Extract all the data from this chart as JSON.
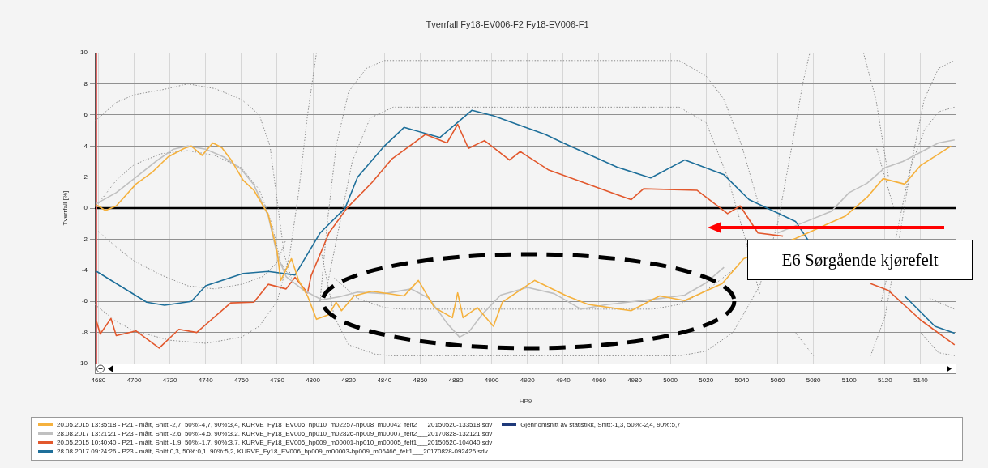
{
  "chart_data": {
    "type": "line",
    "title": "Tverrfall Fy18-EV006-F2 Fy18-EV006-F1",
    "xlabel": "HP9",
    "ylabel": "Tverrfall [%]",
    "xlim": [
      4678,
      5160
    ],
    "xticks": [
      4680,
      4700,
      4720,
      4740,
      4760,
      4780,
      4800,
      4820,
      4840,
      4860,
      4880,
      4900,
      4920,
      4940,
      4960,
      4980,
      5000,
      5020,
      5040,
      5060,
      5080,
      5100,
      5120,
      5140
    ],
    "ylim": [
      -10,
      10
    ],
    "yticks": [
      -10,
      -8,
      -6,
      -4,
      -2,
      0,
      2,
      4,
      6,
      8,
      10
    ],
    "grid": true,
    "legend": "bottom",
    "marker": "none",
    "line_style": "solid",
    "ref_lines": [
      {
        "axis": "y",
        "value": 0,
        "color": "#000000"
      },
      {
        "axis": "x",
        "value": 4679,
        "color": "#e06060"
      }
    ],
    "annotations": [
      "E6 Sørgående kjørefelt"
    ],
    "series": [
      {
        "name": "20.05.2015 13:35:18 - P21 - målt, Snitt:-2,7, 50%:-4,7, 90%:3,4, KURVE_Fy18_EV006_hp010_m02257-hp008_m00042_felt2___20150520-133518.sdv",
        "color": "#f5b13d",
        "x": [
          4679,
          4684,
          4690,
          4701,
          4710,
          4719,
          4728,
          4732,
          4738,
          4744,
          4749,
          4754,
          4761,
          4767,
          4775,
          4780,
          4782,
          4788,
          4792,
          4797,
          4802,
          4809,
          4813,
          4816,
          4823,
          4833,
          4851,
          4859,
          4868,
          4878,
          4881,
          4884,
          4892,
          4901,
          4906,
          4924,
          4942,
          4954,
          4978,
          4994,
          5008,
          5029,
          5041,
          5070,
          5098,
          5110,
          5119,
          5131,
          5140,
          5157
        ],
        "values": [
          0.2,
          -0.15,
          0.15,
          1.55,
          2.3,
          3.3,
          3.85,
          4.0,
          3.4,
          4.2,
          3.9,
          3.15,
          1.8,
          1.15,
          -0.4,
          -2.8,
          -4.65,
          -3.25,
          -4.65,
          -5.65,
          -7.15,
          -6.85,
          -6.05,
          -6.6,
          -5.65,
          -5.35,
          -5.65,
          -4.65,
          -6.4,
          -7.05,
          -5.45,
          -7.05,
          -6.4,
          -7.6,
          -6.05,
          -4.65,
          -5.65,
          -6.2,
          -6.6,
          -5.65,
          -5.95,
          -4.85,
          -3.25,
          -1.95,
          -0.5,
          0.7,
          1.9,
          1.55,
          2.75,
          4.0
        ]
      },
      {
        "name": "28.08.2017 13:21:21 - P23 - målt, Snitt:-2,6, 50%:-4,5, 90%:3,2, KURVE_Fy18_EV006_hp010_m02826-hp009_m00007_felt2___20170828-132121.sdv",
        "color": "#c0c0c0",
        "x": [
          4679,
          4690,
          4700,
          4712,
          4722,
          4730,
          4740,
          4750,
          4760,
          4767,
          4775,
          4780,
          4785,
          4795,
          4805,
          4815,
          4825,
          4840,
          4855,
          4865,
          4875,
          4882,
          4887,
          4895,
          4905,
          4920,
          4935,
          4950,
          4965,
          4980,
          4995,
          5008,
          5020,
          5030,
          5045,
          5060,
          5075,
          5090,
          5100,
          5110,
          5120,
          5130,
          5140,
          5150,
          5159
        ],
        "values": [
          0.3,
          1.0,
          1.9,
          3.0,
          3.8,
          4.0,
          3.8,
          3.3,
          2.5,
          1.5,
          -0.5,
          -3.0,
          -4.4,
          -5.3,
          -5.9,
          -5.7,
          -5.4,
          -5.5,
          -5.2,
          -5.8,
          -7.4,
          -8.3,
          -8.0,
          -6.8,
          -5.6,
          -5.1,
          -5.5,
          -6.5,
          -6.2,
          -6.0,
          -5.8,
          -5.6,
          -4.8,
          -3.8,
          null,
          -1.6,
          -0.9,
          -0.2,
          1.0,
          1.6,
          2.6,
          3.0,
          3.6,
          4.2,
          4.4
        ]
      },
      {
        "name": "20.05.2015 10:40:40 - P21 - målt, Snitt:-1,9, 50%:-1,7, 90%:3,7, KURVE_Fy18_EV006_hp009_m00001-hp010_m00005_felt1___20150520-104040.sdv",
        "color": "#e2582d",
        "x": [
          4679,
          4681,
          4687,
          4690,
          4701,
          4714,
          4725,
          4735,
          4754,
          4767,
          4775,
          4785,
          4790,
          4797,
          4799,
          4809,
          4819,
          4833,
          4844,
          4863,
          4875,
          4881,
          4887,
          4896,
          4910,
          4916,
          4932,
          4949,
          4978,
          4985,
          5015,
          5032,
          5039,
          5049,
          5063,
          5080,
          5100,
          5112,
          5122,
          5140,
          5159
        ],
        "values": [
          -7.3,
          -8.1,
          -7.1,
          -8.2,
          -7.9,
          -9.0,
          -7.8,
          -8.0,
          -6.1,
          -6.05,
          -4.9,
          -5.2,
          -4.45,
          -5.45,
          -4.35,
          -1.6,
          0,
          1.65,
          3.15,
          4.75,
          4.2,
          5.4,
          3.85,
          4.35,
          3.1,
          3.65,
          2.45,
          1.75,
          0.55,
          1.25,
          1.15,
          -0.35,
          0.15,
          -1.6,
          -1.8,
          null,
          null,
          -4.85,
          -5.3,
          -7.2,
          -8.8
        ]
      },
      {
        "name": "28.08.2017 09:24:26 - P23 - målt, Snitt:0,3, 50%:0,1, 90%:5,2, KURVE_Fy18_EV006_hp009_m00003-hp009_m06466_felt1___20170828-092426.sdv",
        "color": "#1e6f9a",
        "x": [
          4679,
          4707,
          4717,
          4732,
          4740,
          4761,
          4775,
          4790,
          4804,
          4818,
          4825,
          4840,
          4851,
          4871,
          4889,
          4901,
          4930,
          4940,
          4970,
          4989,
          5008,
          5030,
          5044,
          5070,
          5077,
          5100,
          5131,
          5148,
          5159
        ],
        "values": [
          -4.07,
          -6.05,
          -6.25,
          -6.0,
          -5.0,
          -4.2,
          -4.07,
          -4.3,
          -1.6,
          0,
          2,
          4,
          5.2,
          4.55,
          6.3,
          5.95,
          4.75,
          4.2,
          2.65,
          1.95,
          3.1,
          2.15,
          0.55,
          -0.85,
          -2.05,
          null,
          -5.65,
          -7.6,
          -8.05
        ]
      },
      {
        "name": "Gjennomsnitt av statistikk, Snitt:-1,3, 50%:-2,4, 90%:5,7",
        "color": "#1f3a7a"
      },
      {
        "color": "#8c8c8c",
        "line_style": "dotted",
        "x": [
          4678,
          4690,
          4700,
          4715,
          4730,
          4745,
          4760,
          4770,
          4776,
          4780,
          4784,
          4788,
          4795,
          4804,
          4808,
          4813,
          4820,
          4830,
          4840,
          5005,
          5020,
          5030,
          5040,
          5050,
          5060,
          5070,
          5080,
          5095,
          5112,
          5120,
          5128,
          5135,
          5142,
          5150,
          5159
        ],
        "values": [
          5.6,
          6.8,
          7.3,
          7.6,
          8.0,
          7.7,
          7.0,
          6.0,
          4.0,
          0.5,
          -3.0,
          -4.5,
          null,
          -6,
          -1,
          4,
          7.5,
          9.0,
          9.5,
          9.5,
          8.5,
          7.0,
          4.0,
          0,
          null,
          -8,
          -9.5,
          null,
          -9.5,
          -7,
          -2,
          3,
          7,
          9,
          9.5
        ]
      },
      {
        "color": "#8c8c8c",
        "line_style": "dotted",
        "x": [
          4678,
          4690,
          4700,
          4720,
          4740,
          4760,
          4770,
          4780,
          4787,
          4792,
          4797,
          4802,
          4803,
          4805,
          4812,
          4820,
          4835,
          4845,
          5005,
          5020,
          5035,
          5050,
          5060,
          5068,
          5074,
          5078,
          5090,
          5108,
          5115,
          5122,
          5130,
          5140,
          5150,
          5159
        ],
        "values": [
          -6.2,
          -7.3,
          -7.9,
          -8.5,
          -8.7,
          -8.3,
          -7.6,
          -6.0,
          -3.0,
          1,
          6,
          10,
          null,
          -3,
          -7,
          -8.8,
          -9.4,
          -9.5,
          -9.5,
          -9.2,
          -8,
          -5,
          -1,
          4,
          8,
          10,
          null,
          10,
          7,
          2,
          null,
          -8,
          -9.3,
          -9.5
        ]
      },
      {
        "color": "#8c8c8c",
        "line_style": "dotted",
        "x": [
          4808,
          4815,
          4822,
          4832,
          4845,
          5005,
          5020,
          5032,
          5042,
          5050,
          5080,
          5118,
          5126,
          5134,
          5142,
          5150,
          5159
        ],
        "values": [
          -5,
          -1,
          3,
          5.8,
          6.5,
          6.5,
          5.5,
          2,
          -2,
          -5.5,
          null,
          -6,
          -2,
          2.5,
          5,
          6.2,
          6.5
        ]
      },
      {
        "color": "#8c8c8c",
        "line_style": "dotted",
        "x": [
          4812,
          4825,
          4840,
          4850,
          4990,
          5005,
          5020,
          5035,
          5048,
          5080,
          5115,
          5125,
          5135,
          5145,
          5159
        ],
        "values": [
          -4.5,
          -5.8,
          -6.4,
          -6.5,
          -6.5,
          -6.2,
          -5.3,
          -4.0,
          null,
          null,
          4,
          0,
          null,
          -5.8,
          -6.5
        ]
      },
      {
        "color": "#8c8c8c",
        "line_style": "dotted",
        "x": [
          4680,
          4690,
          4700,
          4715,
          4730,
          4745,
          4760,
          4770,
          4777,
          4782,
          4787
        ],
        "values": [
          0.3,
          1.8,
          2.8,
          3.5,
          3.7,
          3.4,
          2.6,
          1.2,
          -1.0,
          -3.5,
          -4.4
        ]
      },
      {
        "color": "#8c8c8c",
        "line_style": "dotted",
        "x": [
          4680,
          4690,
          4700,
          4715,
          4730,
          4745,
          4760,
          4772,
          4780,
          4785
        ],
        "values": [
          -1.5,
          -2.5,
          -3.4,
          -4.3,
          -5.0,
          -5.2,
          -4.9,
          -4.4,
          -3.5,
          -2.0
        ]
      }
    ]
  }
}
